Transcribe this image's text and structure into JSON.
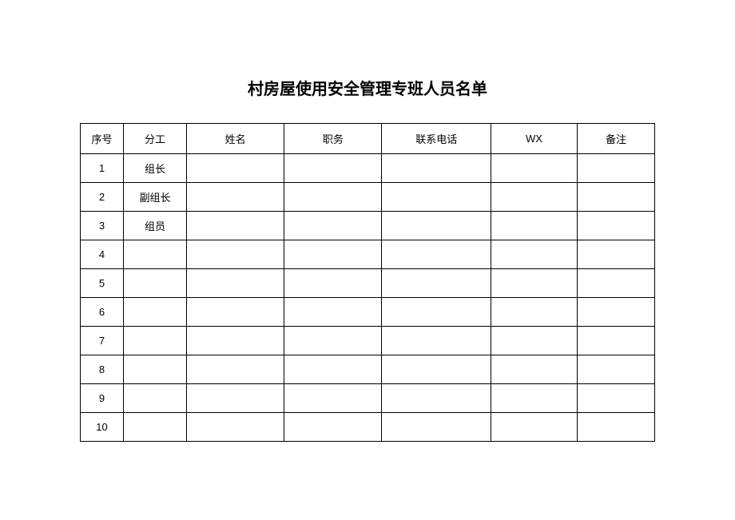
{
  "document": {
    "title": "村房屋使用安全管理专班人员名单",
    "title_fontsize": 20,
    "background_color": "#ffffff",
    "border_color": "#000000",
    "text_color": "#000000",
    "cell_fontsize": 13
  },
  "table": {
    "type": "table",
    "columns": [
      {
        "key": "seq",
        "label": "序号",
        "width_pct": 7.5
      },
      {
        "key": "role",
        "label": "分工",
        "width_pct": 11
      },
      {
        "key": "name",
        "label": "姓名",
        "width_pct": 17
      },
      {
        "key": "position",
        "label": "职务",
        "width_pct": 17
      },
      {
        "key": "phone",
        "label": "联系电话",
        "width_pct": 19
      },
      {
        "key": "wx",
        "label": "WX",
        "width_pct": 15
      },
      {
        "key": "remark",
        "label": "备注",
        "width_pct": 13.5
      }
    ],
    "rows": [
      {
        "seq": "1",
        "role": "组长",
        "name": "",
        "position": "",
        "phone": "",
        "wx": "",
        "remark": ""
      },
      {
        "seq": "2",
        "role": "副组长",
        "name": "",
        "position": "",
        "phone": "",
        "wx": "",
        "remark": ""
      },
      {
        "seq": "3",
        "role": "组员",
        "name": "",
        "position": "",
        "phone": "",
        "wx": "",
        "remark": ""
      },
      {
        "seq": "4",
        "role": "",
        "name": "",
        "position": "",
        "phone": "",
        "wx": "",
        "remark": ""
      },
      {
        "seq": "5",
        "role": "",
        "name": "",
        "position": "",
        "phone": "",
        "wx": "",
        "remark": ""
      },
      {
        "seq": "6",
        "role": "",
        "name": "",
        "position": "",
        "phone": "",
        "wx": "",
        "remark": ""
      },
      {
        "seq": "7",
        "role": "",
        "name": "",
        "position": "",
        "phone": "",
        "wx": "",
        "remark": ""
      },
      {
        "seq": "8",
        "role": "",
        "name": "",
        "position": "",
        "phone": "",
        "wx": "",
        "remark": ""
      },
      {
        "seq": "9",
        "role": "",
        "name": "",
        "position": "",
        "phone": "",
        "wx": "",
        "remark": ""
      },
      {
        "seq": "10",
        "role": "",
        "name": "",
        "position": "",
        "phone": "",
        "wx": "",
        "remark": ""
      }
    ],
    "header_row_height": 38,
    "data_row_height": 36
  }
}
